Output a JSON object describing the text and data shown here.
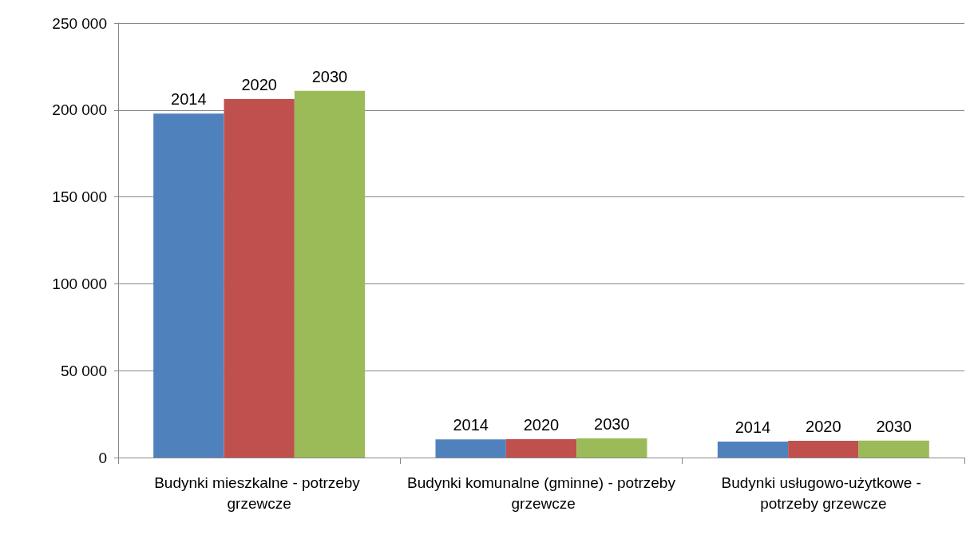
{
  "chart_data": {
    "type": "bar",
    "categories": [
      "Budynki mieszkalne - potrzeby grzewcze",
      "Budynki komunalne (gminne) - potrzeby grzewcze",
      "Budynki usługowo-użytkowe - potrzeby grzewcze"
    ],
    "series": [
      {
        "name": "2014",
        "color": "#4f81bd",
        "values": [
          198000,
          10400,
          9200
        ]
      },
      {
        "name": "2020",
        "color": "#c0504d",
        "values": [
          206300,
          10600,
          9600
        ]
      },
      {
        "name": "2030",
        "color": "#9bbb59",
        "values": [
          211100,
          11000,
          9800
        ]
      }
    ],
    "ylim": [
      0,
      250000
    ],
    "yticks": [
      0,
      50000,
      100000,
      150000,
      200000,
      250000
    ],
    "grid": "y",
    "legend": false
  }
}
